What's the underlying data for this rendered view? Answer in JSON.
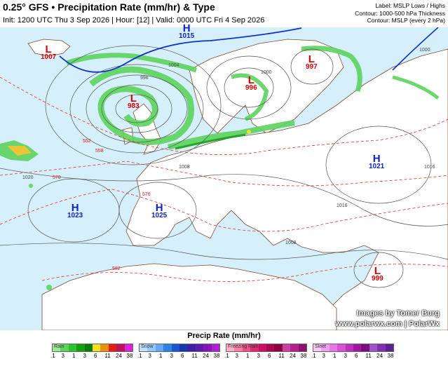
{
  "header": {
    "title": "0.25° GFS • Precipitation Rate (mm/hr) & Type",
    "subtitle": "Init: 1200 UTC Thu 3 Sep 2026 | Hour: [12] | Valid: 0000 UTC Fri 4 Sep 2026",
    "legend_lines": [
      "Label: MSLP Lows / Highs",
      "Contour: 1000-500 hPa Thickness",
      "Contour: MSLP (every 2 hPa)"
    ]
  },
  "pressure_centers": [
    {
      "type": "L",
      "value": "1007",
      "color": "#d40000"
    },
    {
      "type": "H",
      "value": "1015",
      "color": "#1020c0"
    },
    {
      "type": "L",
      "value": "983",
      "color": "#d40000"
    },
    {
      "type": "L",
      "value": "996",
      "color": "#d40000"
    },
    {
      "type": "L",
      "value": "997",
      "color": "#d40000"
    },
    {
      "type": "H",
      "value": "1021",
      "color": "#1020c0"
    },
    {
      "type": "H",
      "value": "1023",
      "color": "#1020c0"
    },
    {
      "type": "H",
      "value": "1025",
      "color": "#1020c0"
    },
    {
      "type": "L",
      "value": "999",
      "color": "#d40000"
    }
  ],
  "isobar_labels": [
    "1004",
    "1000",
    "996",
    "1008",
    "1016",
    "1020",
    "1016",
    "1008",
    "1000"
  ],
  "thickness_labels": [
    "552",
    "558",
    "570",
    "576",
    "582"
  ],
  "credits": [
    "Images by Tomer Burg",
    "www.polarwx.com | PolarWx"
  ],
  "footer": {
    "title": "Precip Rate (mm/hr)",
    "bars": [
      {
        "label": "Rain",
        "colors": [
          "#9be89b",
          "#5ed35e",
          "#2ec22e",
          "#10a010",
          "#087a08",
          "#f0e020",
          "#f09010",
          "#e02010",
          "#c01060",
          "#e020e0"
        ],
        "ticks": [
          ".1",
          "3",
          "1",
          "3",
          "6",
          "11",
          "24",
          "38"
        ]
      },
      {
        "label": "Snow",
        "colors": [
          "#c0e0ff",
          "#90c8ff",
          "#60a8f8",
          "#3080e8",
          "#1858d0",
          "#1038b0",
          "#3a20a8",
          "#6018b0",
          "#8a10c0",
          "#b020d0"
        ],
        "ticks": [
          ".1",
          "3",
          "1",
          "3",
          "6",
          "11",
          "24",
          "38"
        ]
      },
      {
        "label": "Freezing Rain",
        "colors": [
          "#ffb0c8",
          "#f880a8",
          "#f05088",
          "#e02870",
          "#c81060",
          "#a80850",
          "#900040",
          "#d040a0",
          "#b82090",
          "#901070"
        ],
        "ticks": [
          ".1",
          "3",
          "1",
          "3",
          "6",
          "11",
          "24",
          "38"
        ]
      },
      {
        "label": "Sleet",
        "colors": [
          "#f8c8f8",
          "#f0a0f0",
          "#e878e8",
          "#d850d8",
          "#c030c0",
          "#a018a0",
          "#800880",
          "#a050d0",
          "#8030b0",
          "#602090"
        ],
        "ticks": [
          ".1",
          "3",
          "1",
          "3",
          "6",
          "11",
          "24",
          "38"
        ]
      }
    ]
  },
  "colors": {
    "sea": "#d6f0fb",
    "land": "#ffffff",
    "precip_light": "#5ed35e",
    "precip_dark": "#10a010",
    "isobar": "#555555",
    "thickness": "#e03030",
    "front": "#1030d0"
  }
}
